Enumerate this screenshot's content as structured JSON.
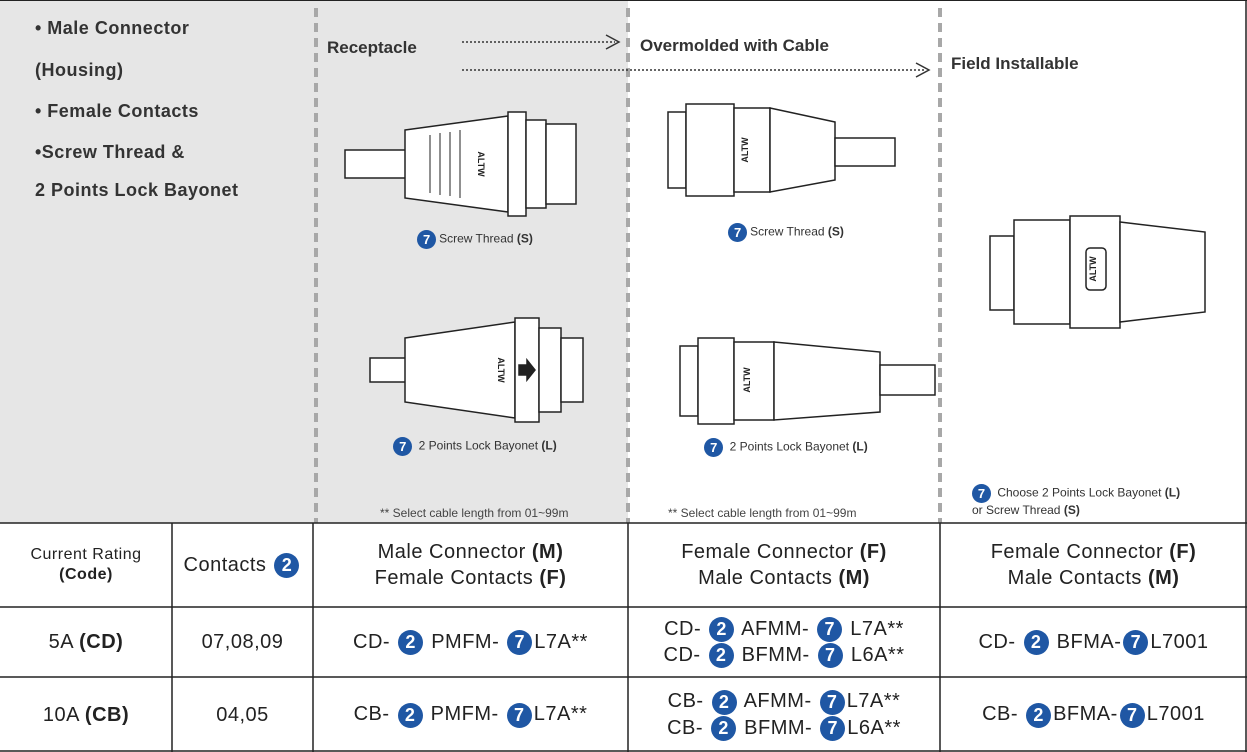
{
  "features": [
    "• Male Connector",
    "(Housing)",
    "• Female Contacts",
    "•Screw Thread &",
    "2 Points Lock Bayonet"
  ],
  "brand": "ALTW",
  "columns": [
    {
      "title": "Receptacle",
      "options": [
        [
          [
            {
              "n": "7"
            },
            {
              "t": "Screw Thread "
            },
            {
              "b": "(S)"
            }
          ]
        ],
        [
          [
            {
              "n": "7"
            },
            {
              "t": " 2 Points Lock Bayonet "
            },
            {
              "b": "(L)"
            }
          ]
        ]
      ],
      "note": "** Select cable length from 01~99m"
    },
    {
      "title": "Overmolded with Cable",
      "options": [
        [
          [
            {
              "n": "7"
            },
            {
              "t": "Screw Thread "
            },
            {
              "b": "(S)"
            }
          ]
        ],
        [
          [
            {
              "n": "7"
            },
            {
              "t": " 2 Points Lock Bayonet "
            },
            {
              "b": "(L)"
            }
          ]
        ]
      ],
      "note": "** Select cable length from 01~99m"
    },
    {
      "title": "Field Installable",
      "options": [
        [
          [
            {
              "n": "7"
            },
            {
              "t": " Choose 2 Points Lock Bayonet "
            },
            {
              "b": "(L)"
            }
          ],
          [
            {
              "t": "or Screw Thread "
            },
            {
              "b": "(S)"
            }
          ]
        ]
      ]
    }
  ],
  "table": {
    "header": [
      [
        [
          {
            "t": "Current Rating"
          }
        ],
        [
          {
            "b": "(Code)"
          }
        ]
      ],
      [
        [
          {
            "t": "Contacts "
          },
          {
            "n": "2"
          }
        ]
      ],
      [
        [
          {
            "t": "Male Connector "
          },
          {
            "b": "(M)"
          }
        ],
        [
          {
            "t": "Female Contacts "
          },
          {
            "b": "(F)"
          }
        ]
      ],
      [
        [
          {
            "t": "Female Connector "
          },
          {
            "b": "(F)"
          }
        ],
        [
          {
            "t": "Male Contacts "
          },
          {
            "b": "(M)"
          }
        ]
      ],
      [
        [
          {
            "t": "Female Connector "
          },
          {
            "b": "(F)"
          }
        ],
        [
          {
            "t": "Male Contacts "
          },
          {
            "b": "(M)"
          }
        ]
      ]
    ],
    "rows": [
      [
        [
          [
            {
              "t": "5A "
            },
            {
              "b": "(CD)"
            }
          ]
        ],
        [
          [
            {
              "t": "07,08,09"
            }
          ]
        ],
        [
          [
            {
              "t": "CD- "
            },
            {
              "n": "2"
            },
            {
              "t": " PMFM- "
            },
            {
              "n": "7"
            },
            {
              "t": "L7A**"
            }
          ]
        ],
        [
          [
            {
              "t": "CD- "
            },
            {
              "n": "2"
            },
            {
              "t": " AFMM- "
            },
            {
              "n": "7"
            },
            {
              "t": " L7A**"
            }
          ],
          [
            {
              "t": "CD- "
            },
            {
              "n": "2"
            },
            {
              "t": " BFMM- "
            },
            {
              "n": "7"
            },
            {
              "t": " L6A**"
            }
          ]
        ],
        [
          [
            {
              "t": "CD- "
            },
            {
              "n": "2"
            },
            {
              "t": " BFMA-"
            },
            {
              "n": "7"
            },
            {
              "t": "L7001"
            }
          ]
        ]
      ],
      [
        [
          [
            {
              "t": "10A "
            },
            {
              "b": "(CB)"
            }
          ]
        ],
        [
          [
            {
              "t": "04,05"
            }
          ]
        ],
        [
          [
            {
              "t": "CB- "
            },
            {
              "n": "2"
            },
            {
              "t": " PMFM- "
            },
            {
              "n": "7"
            },
            {
              "t": "L7A**"
            }
          ]
        ],
        [
          [
            {
              "t": "CB- "
            },
            {
              "n": "2"
            },
            {
              "t": " AFMM- "
            },
            {
              "n": "7"
            },
            {
              "t": "L7A**"
            }
          ],
          [
            {
              "t": "CB- "
            },
            {
              "n": "2"
            },
            {
              "t": " BFMM- "
            },
            {
              "n": "7"
            },
            {
              "t": "L6A**"
            }
          ]
        ],
        [
          [
            {
              "t": "CB- "
            },
            {
              "n": "2"
            },
            {
              "t": "BFMA-"
            },
            {
              "n": "7"
            },
            {
              "t": "L7001"
            }
          ]
        ]
      ]
    ]
  }
}
